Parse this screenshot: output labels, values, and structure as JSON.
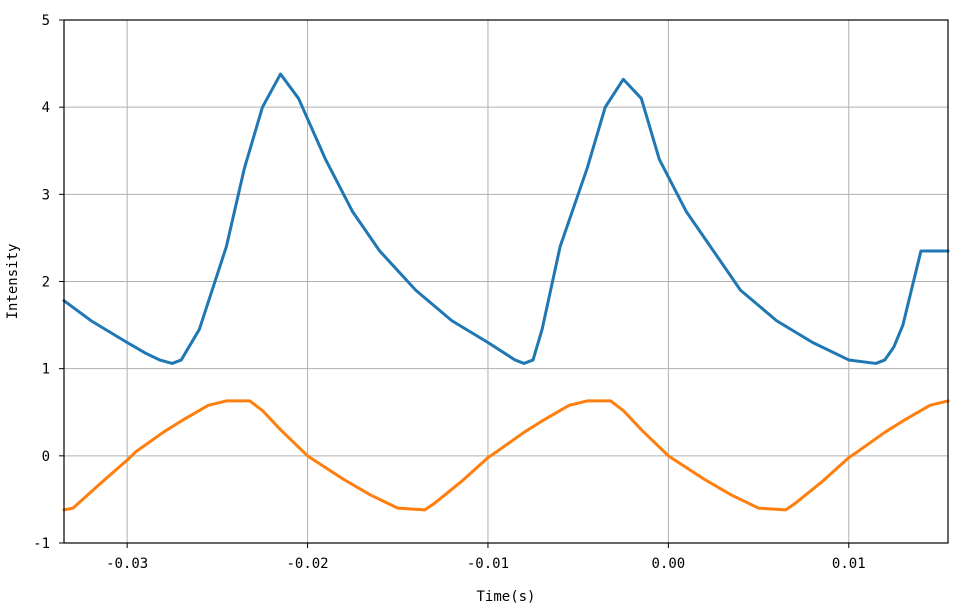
{
  "chart_data": {
    "type": "line",
    "xlabel": "Time(s)",
    "ylabel": "Intensity",
    "xlim": [
      -0.0335,
      0.0155
    ],
    "ylim": [
      -1,
      5
    ],
    "grid": true,
    "x_ticks": [
      -0.03,
      -0.02,
      -0.01,
      0.0,
      0.01
    ],
    "x_tick_labels": [
      "-0.03",
      "-0.02",
      "-0.01",
      "0.00",
      "0.01"
    ],
    "y_ticks": [
      -1,
      0,
      1,
      2,
      3,
      4,
      5
    ],
    "y_tick_labels": [
      "-1",
      "0",
      "1",
      "2",
      "3",
      "4",
      "5"
    ],
    "period": 0.02,
    "series": [
      {
        "color": "#1f77b4",
        "x": [
          -0.0335,
          -0.032,
          -0.03,
          -0.029,
          -0.0282,
          -0.0275,
          -0.027,
          -0.026,
          -0.0245,
          -0.0235,
          -0.0225,
          -0.0215,
          -0.0205,
          -0.019,
          -0.0175,
          -0.016,
          -0.014,
          -0.012,
          -0.01,
          -0.0085,
          -0.008,
          -0.0075,
          -0.007,
          -0.006,
          -0.0045,
          -0.0035,
          -0.0025,
          -0.0015,
          -0.0005,
          0.001,
          0.0025,
          0.004,
          0.006,
          0.008,
          0.01,
          0.0115,
          0.012,
          0.0125,
          0.013,
          0.014,
          0.0155
        ],
        "y": [
          1.78,
          1.55,
          1.3,
          1.18,
          1.1,
          1.06,
          1.1,
          1.45,
          2.4,
          3.3,
          4.0,
          4.38,
          4.1,
          3.4,
          2.8,
          2.35,
          1.9,
          1.55,
          1.3,
          1.1,
          1.06,
          1.1,
          1.45,
          2.4,
          3.3,
          4.0,
          4.32,
          4.1,
          3.4,
          2.8,
          2.35,
          1.9,
          1.55,
          1.3,
          1.1,
          1.06,
          1.1,
          1.25,
          1.5,
          2.35,
          2.35
        ]
      },
      {
        "color": "#ff7f0e",
        "x": [
          -0.0335,
          -0.033,
          -0.0315,
          -0.03,
          -0.0295,
          -0.028,
          -0.027,
          -0.0255,
          -0.0245,
          -0.0232,
          -0.0225,
          -0.0215,
          -0.02,
          -0.018,
          -0.0165,
          -0.015,
          -0.0135,
          -0.013,
          -0.0115,
          -0.01,
          -0.0095,
          -0.008,
          -0.007,
          -0.0055,
          -0.0045,
          -0.0032,
          -0.0025,
          -0.0015,
          0.0,
          0.002,
          0.0035,
          0.005,
          0.0065,
          0.007,
          0.0085,
          0.01,
          0.0105,
          0.012,
          0.013,
          0.0145,
          0.0155
        ],
        "y": [
          -0.62,
          -0.6,
          -0.32,
          -0.05,
          0.05,
          0.27,
          0.4,
          0.58,
          0.63,
          0.63,
          0.52,
          0.3,
          0.0,
          -0.27,
          -0.45,
          -0.6,
          -0.62,
          -0.55,
          -0.3,
          -0.02,
          0.05,
          0.27,
          0.4,
          0.58,
          0.63,
          0.63,
          0.52,
          0.3,
          0.0,
          -0.27,
          -0.45,
          -0.6,
          -0.62,
          -0.55,
          -0.3,
          -0.02,
          0.05,
          0.27,
          0.4,
          0.58,
          0.63
        ]
      }
    ]
  }
}
